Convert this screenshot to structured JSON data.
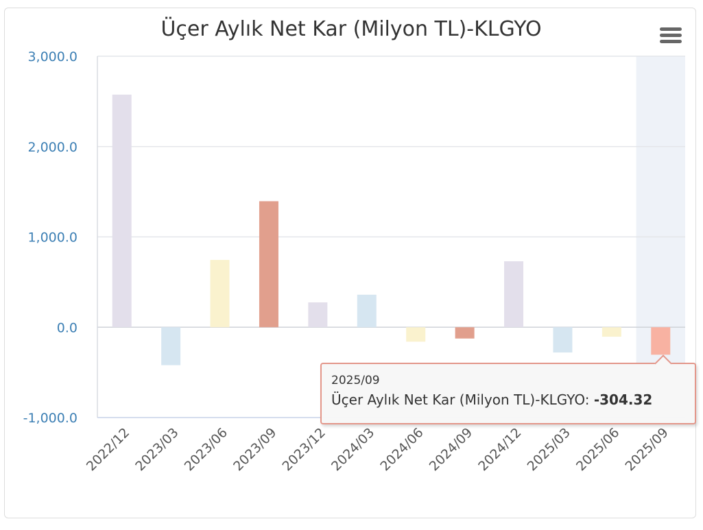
{
  "chart_data": {
    "type": "bar",
    "title": "Üçer Aylık Net Kar (Milyon TL)-KLGYO",
    "categories": [
      "2022/12",
      "2023/03",
      "2023/06",
      "2023/09",
      "2023/12",
      "2024/03",
      "2024/06",
      "2024/09",
      "2024/12",
      "2025/03",
      "2025/06",
      "2025/09"
    ],
    "series": [
      {
        "values": [
          2575,
          -420,
          745,
          1395,
          275,
          360,
          -160,
          -125,
          730,
          -280,
          -105,
          -304.32
        ]
      }
    ],
    "bar_colors": [
      "#e3dfeb",
      "#d6e6f1",
      "#faf2ce",
      "#e19f8d",
      "#e3dfeb",
      "#d6e6f1",
      "#faf2ce",
      "#e19f8d",
      "#e3dfeb",
      "#d6e6f1",
      "#faf2ce",
      "#f8b2a2"
    ],
    "ylim": [
      -1000,
      3000
    ],
    "yticks": [
      -1000,
      0,
      1000,
      2000,
      3000
    ],
    "ytick_labels": [
      "-1,000.0",
      "0.0",
      "1,000.0",
      "2,000.0",
      "3,000.0"
    ],
    "highlight_index": 11,
    "grid": true,
    "xlabel": "",
    "ylabel": ""
  },
  "tooltip": {
    "date": "2025/09",
    "series_label": "Üçer Aylık Net Kar (Milyon TL)-KLGYO:",
    "value": "-304.32"
  },
  "menu": {
    "icon": "hamburger-menu-icon"
  }
}
